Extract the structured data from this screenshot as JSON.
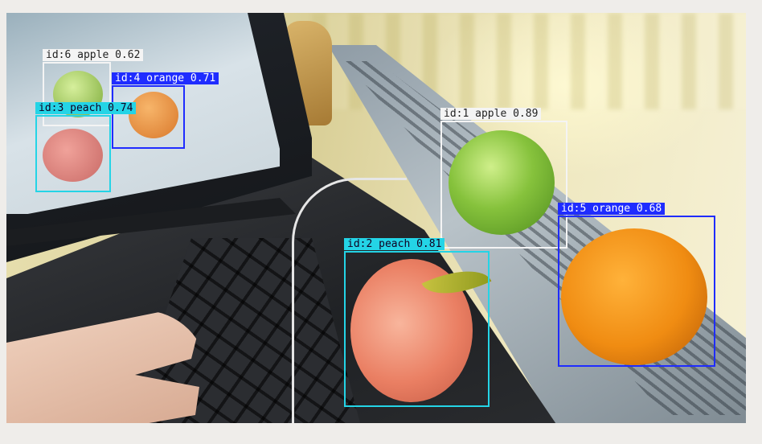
{
  "detections": [
    {
      "id_label": "id:6 apple 0.62",
      "color": "#f4f4f4"
    },
    {
      "id_label": "id:4 orange 0.71",
      "color": "#1f2cff"
    },
    {
      "id_label": "id:3 peach 0.74",
      "color": "#24d4e6"
    },
    {
      "id_label": "id:1 apple 0.89",
      "color": "#f4f4f4"
    },
    {
      "id_label": "id:5 orange 0.68",
      "color": "#1f2cff"
    },
    {
      "id_label": "id:2 peach 0.81",
      "color": "#24d4e6"
    }
  ]
}
